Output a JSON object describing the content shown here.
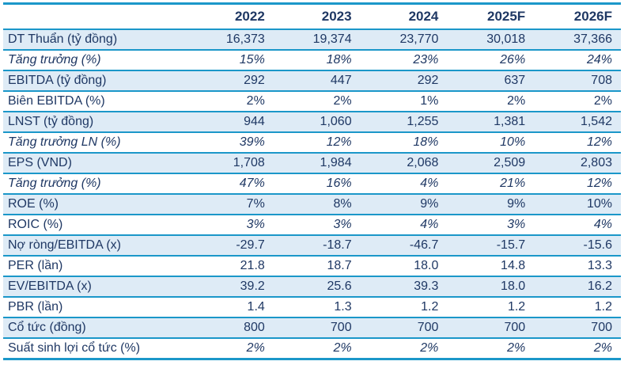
{
  "colors": {
    "cyan": "#1b97c9",
    "navy": "#1f3864",
    "shade": "#deebf6",
    "page-bg": "#ffffff"
  },
  "table": {
    "columns": [
      "",
      "2022",
      "2023",
      "2024",
      "2025F",
      "2026F"
    ],
    "rows": [
      {
        "label": "DT Thuẩn (tỷ đồng)",
        "values": [
          "16,373",
          "19,374",
          "23,770",
          "30,018",
          "37,366"
        ],
        "shaded": true,
        "italic_label": false,
        "italic_values": false
      },
      {
        "label": "Tăng trưởng (%)",
        "values": [
          "15%",
          "18%",
          "23%",
          "26%",
          "24%"
        ],
        "shaded": false,
        "italic_label": true,
        "italic_values": true
      },
      {
        "label": "EBITDA (tỷ đồng)",
        "values": [
          "292",
          "447",
          "292",
          "637",
          "708"
        ],
        "shaded": true,
        "italic_label": false,
        "italic_values": false
      },
      {
        "label": "Biên EBITDA (%)",
        "values": [
          "2%",
          "2%",
          "1%",
          "2%",
          "2%"
        ],
        "shaded": false,
        "italic_label": false,
        "italic_values": false
      },
      {
        "label": "LNST (tỷ đồng)",
        "values": [
          "944",
          "1,060",
          "1,255",
          "1,381",
          "1,542"
        ],
        "shaded": true,
        "italic_label": false,
        "italic_values": false
      },
      {
        "label": "Tăng trưởng LN (%)",
        "values": [
          "39%",
          "12%",
          "18%",
          "10%",
          "12%"
        ],
        "shaded": false,
        "italic_label": true,
        "italic_values": true
      },
      {
        "label": "EPS (VND)",
        "values": [
          "1,708",
          "1,984",
          "2,068",
          "2,509",
          "2,803"
        ],
        "shaded": true,
        "italic_label": false,
        "italic_values": false
      },
      {
        "label": "Tăng trưởng (%)",
        "values": [
          "47%",
          "16%",
          "4%",
          "21%",
          "12%"
        ],
        "shaded": false,
        "italic_label": true,
        "italic_values": true
      },
      {
        "label": "ROE (%)",
        "values": [
          "7%",
          "8%",
          "9%",
          "9%",
          "10%"
        ],
        "shaded": true,
        "italic_label": false,
        "italic_values": false
      },
      {
        "label": "ROIC (%)",
        "values": [
          "3%",
          "3%",
          "4%",
          "3%",
          "4%"
        ],
        "shaded": false,
        "italic_label": false,
        "italic_values": true
      },
      {
        "label": "Nợ ròng/EBITDA (x)",
        "values": [
          "-29.7",
          "-18.7",
          "-46.7",
          "-15.7",
          "-15.6"
        ],
        "shaded": true,
        "italic_label": false,
        "italic_values": false
      },
      {
        "label": "PER (lần)",
        "values": [
          "21.8",
          "18.7",
          "18.0",
          "14.8",
          "13.3"
        ],
        "shaded": false,
        "italic_label": false,
        "italic_values": false
      },
      {
        "label": "EV/EBITDA (x)",
        "values": [
          "39.2",
          "25.6",
          "39.3",
          "18.0",
          "16.2"
        ],
        "shaded": true,
        "italic_label": false,
        "italic_values": false
      },
      {
        "label": "PBR (lần)",
        "values": [
          "1.4",
          "1.3",
          "1.2",
          "1.2",
          "1.2"
        ],
        "shaded": false,
        "italic_label": false,
        "italic_values": false
      },
      {
        "label": "Cổ tức (đồng)",
        "values": [
          "800",
          "700",
          "700",
          "700",
          "700"
        ],
        "shaded": true,
        "italic_label": false,
        "italic_values": false
      },
      {
        "label": "Suất sinh lợi cổ tức (%)",
        "values": [
          "2%",
          "2%",
          "2%",
          "2%",
          "2%"
        ],
        "shaded": false,
        "italic_label": false,
        "italic_values": true
      }
    ]
  }
}
